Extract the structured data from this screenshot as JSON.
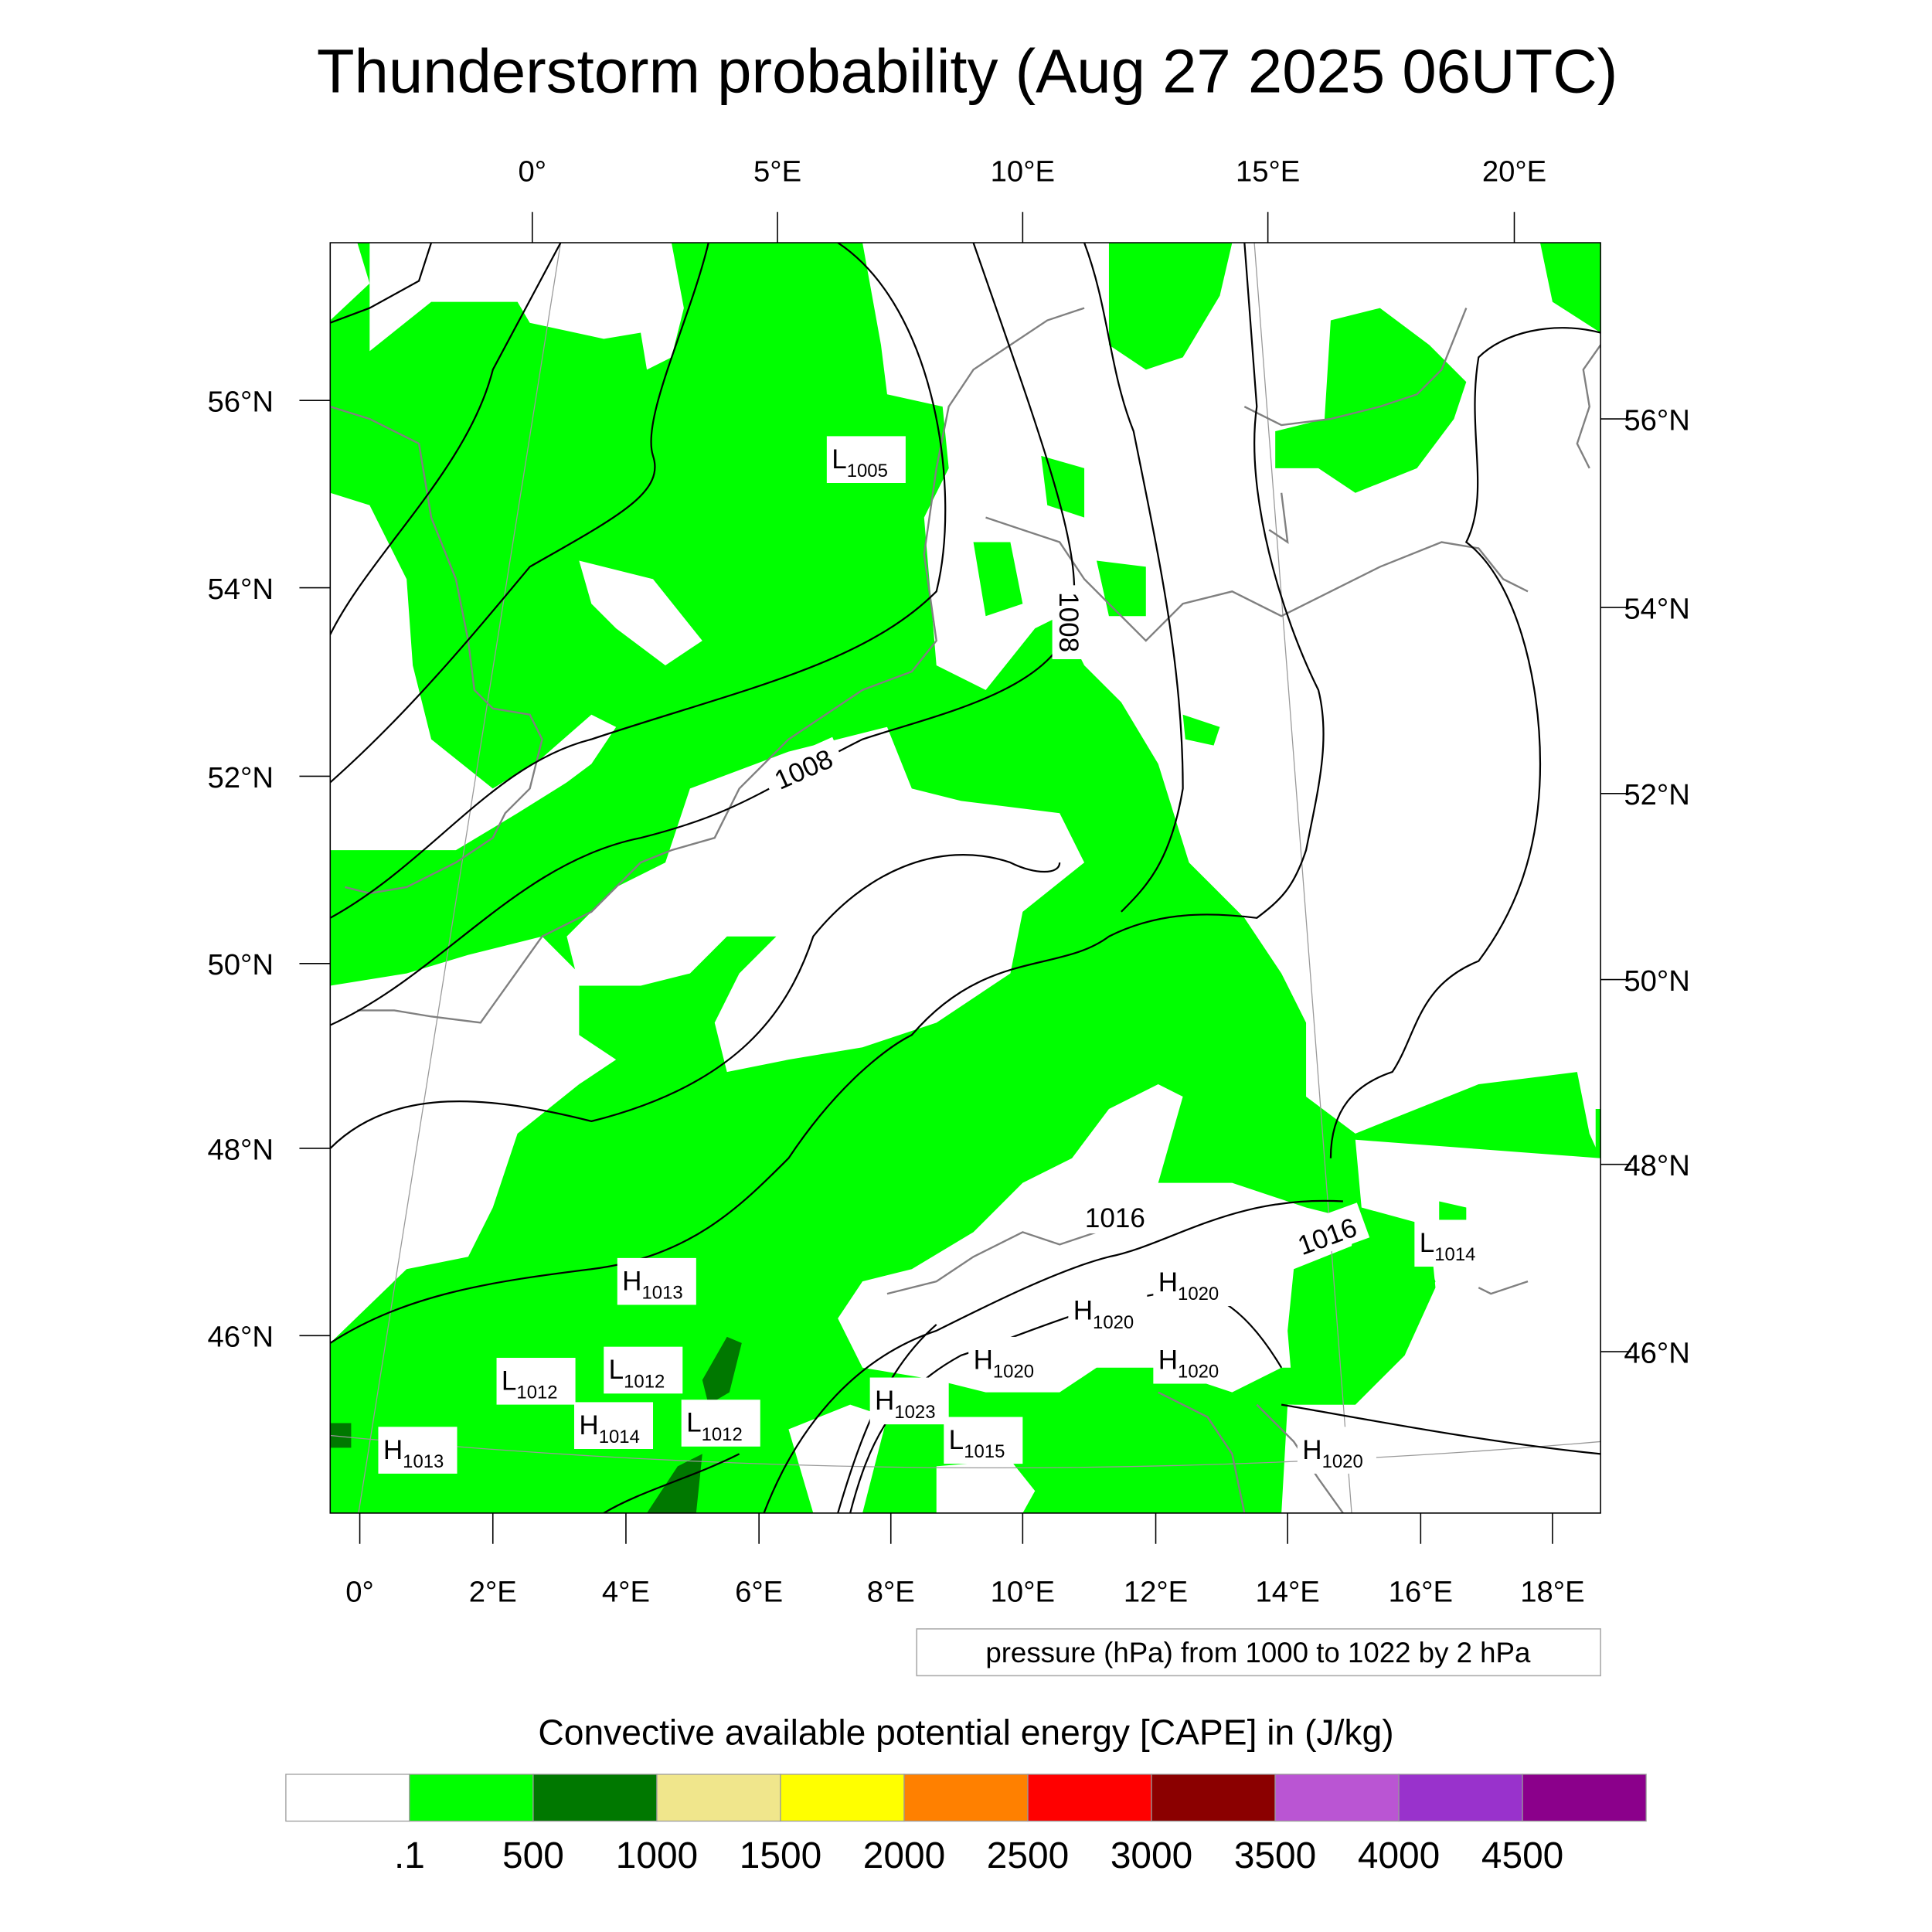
{
  "title": "Thunderstorm probability (Aug 27 2025 06UTC)",
  "top_lon_labels": [
    "0°",
    "5°E",
    "10°E",
    "15°E",
    "20°E"
  ],
  "left_lat_labels": [
    "56°N",
    "54°N",
    "52°N",
    "50°N",
    "48°N",
    "46°N"
  ],
  "right_lat_labels": [
    "56°N",
    "54°N",
    "52°N",
    "50°N",
    "48°N",
    "46°N"
  ],
  "bottom_lon_labels": [
    "0°",
    "2°E",
    "4°E",
    "6°E",
    "8°E",
    "10°E",
    "12°E",
    "14°E",
    "16°E",
    "18°E"
  ],
  "isobar_labels": [
    "1008",
    "1008",
    "1016",
    "1016"
  ],
  "pressure_centers": [
    {
      "type": "L",
      "value": "1005"
    },
    {
      "type": "L",
      "value": "1014"
    },
    {
      "type": "H",
      "value": "1013"
    },
    {
      "type": "H",
      "value": "1020"
    },
    {
      "type": "H",
      "value": "1020"
    },
    {
      "type": "L",
      "value": "1012"
    },
    {
      "type": "L",
      "value": "1012"
    },
    {
      "type": "H",
      "value": "1020"
    },
    {
      "type": "H",
      "value": "1020"
    },
    {
      "type": "H",
      "value": "1023"
    },
    {
      "type": "H",
      "value": "1014"
    },
    {
      "type": "L",
      "value": "1012"
    },
    {
      "type": "L",
      "value": "1015"
    },
    {
      "type": "H",
      "value": "1013"
    },
    {
      "type": "H",
      "value": "1020"
    }
  ],
  "contour_note": "pressure (hPa) from 1000 to 1022 by 2 hPa",
  "colorbar": {
    "title": "Convective available potential energy [CAPE] in (J/kg)",
    "colors": [
      "#ffffff",
      "#00ff00",
      "#007800",
      "#f0e68c",
      "#ffff00",
      "#ff8000",
      "#ff0000",
      "#8b0000",
      "#ba55d3",
      "#9932cc",
      "#8b008b"
    ],
    "labels": [
      ".1",
      "500",
      "1000",
      "1500",
      "2000",
      "2500",
      "3000",
      "3500",
      "4000",
      "4500"
    ]
  },
  "map_colors": {
    "cape_low": "#00ff00",
    "cape_mid": "#007800",
    "isobar": "#000000",
    "coastline": "#808080"
  }
}
